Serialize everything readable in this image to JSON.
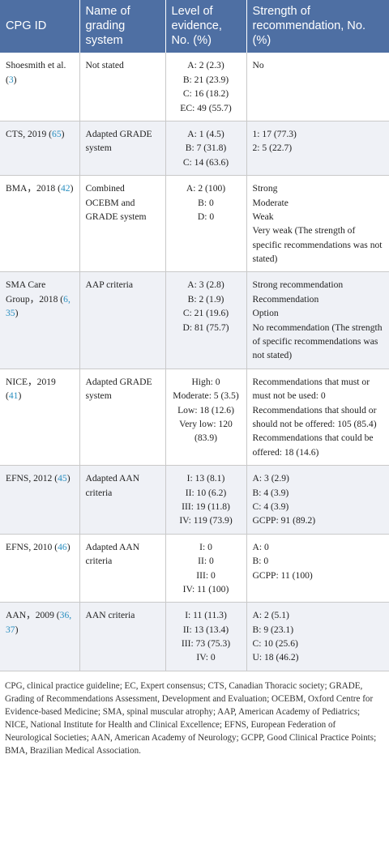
{
  "headers": [
    "CPG ID",
    "Name of grading system",
    "Level of evidence, No. (%)",
    "Strength of recommendation, No. (%)"
  ],
  "rows": [
    {
      "id_text": "Shoesmith et al. (",
      "refs": "3",
      "id_suffix": ")",
      "grading": "Not stated",
      "evidence": [
        "A: 2 (2.3)",
        "B: 21 (23.9)",
        "C: 16 (18.2)",
        "EC: 49 (55.7)"
      ],
      "strength": [
        "No"
      ]
    },
    {
      "id_text": "CTS, 2019 (",
      "refs": "65",
      "id_suffix": ")",
      "grading": "Adapted GRADE system",
      "evidence": [
        "A: 1 (4.5)",
        "B: 7 (31.8)",
        "C: 14 (63.6)"
      ],
      "strength": [
        "1: 17 (77.3)",
        "2: 5 (22.7)"
      ]
    },
    {
      "id_text": "BMA，2018 (",
      "refs": "42",
      "id_suffix": ")",
      "grading": "Combined OCEBM and GRADE system",
      "evidence": [
        "A: 2 (100)",
        "B: 0",
        "D: 0"
      ],
      "strength": [
        "Strong",
        "Moderate",
        "Weak",
        "Very weak (The strength of specific recommendations was not stated)"
      ]
    },
    {
      "id_text": "SMA Care Group，2018 (",
      "refs": "6, 35",
      "id_suffix": ")",
      "grading": "AAP criteria",
      "evidence": [
        "A: 3 (2.8)",
        "B: 2 (1.9)",
        "C: 21 (19.6)",
        "D: 81 (75.7)"
      ],
      "strength": [
        "Strong recommendation",
        "Recommendation",
        "Option",
        "No recommendation (The strength of specific recommendations was not stated)"
      ]
    },
    {
      "id_text": "NICE，2019 (",
      "refs": "41",
      "id_suffix": ")",
      "grading": "Adapted GRADE system",
      "evidence": [
        "High: 0",
        "Moderate: 5 (3.5)",
        "Low: 18 (12.6)",
        "Very low: 120 (83.9)"
      ],
      "strength": [
        "Recommendations that must or must not be used: 0",
        "Recommendations that should or should not be offered: 105 (85.4)",
        "Recommendations that could be offered: 18 (14.6)"
      ]
    },
    {
      "id_text": "EFNS, 2012 (",
      "refs": "45",
      "id_suffix": ")",
      "grading": "Adapted AAN criteria",
      "evidence": [
        "I: 13 (8.1)",
        "II: 10 (6.2)",
        "III: 19 (11.8)",
        "IV: 119 (73.9)"
      ],
      "strength": [
        "A: 3 (2.9)",
        "B: 4 (3.9)",
        "C: 4 (3.9)",
        "GCPP: 91 (89.2)"
      ]
    },
    {
      "id_text": "EFNS, 2010 (",
      "refs": "46",
      "id_suffix": ")",
      "grading": "Adapted AAN criteria",
      "evidence": [
        "I: 0",
        "II: 0",
        "III: 0",
        "IV: 11 (100)"
      ],
      "strength": [
        "A: 0",
        "B: 0",
        "GCPP: 11 (100)"
      ]
    },
    {
      "id_text": "AAN，2009 (",
      "refs": "36, 37",
      "id_suffix": ")",
      "grading": "AAN criteria",
      "evidence": [
        "I: 11 (11.3)",
        "II: 13 (13.4)",
        "III: 73 (75.3)",
        "IV: 0"
      ],
      "strength": [
        "A: 2 (5.1)",
        "B: 9 (23.1)",
        "C: 10 (25.6)",
        "U: 18 (46.2)"
      ]
    }
  ],
  "footnote": "CPG, clinical practice guideline; EC, Expert consensus; CTS, Canadian Thoracic society; GRADE, Grading of Recommendations Assessment, Development and Evaluation; OCEBM, Oxford Centre for Evidence-based Medicine; SMA, spinal muscular atrophy; AAP, American Academy of Pediatrics; NICE, National Institute for Health and Clinical Excellence; EFNS, European Federation of Neurological Societies; AAN, American Academy of Neurology; GCPP, Good Clinical Practice Points; BMA, Brazilian Medical Association.",
  "colors": {
    "header_bg": "#4e6fa3",
    "stripe_bg": "#eff1f6",
    "ref_link": "#2a8fc0"
  }
}
